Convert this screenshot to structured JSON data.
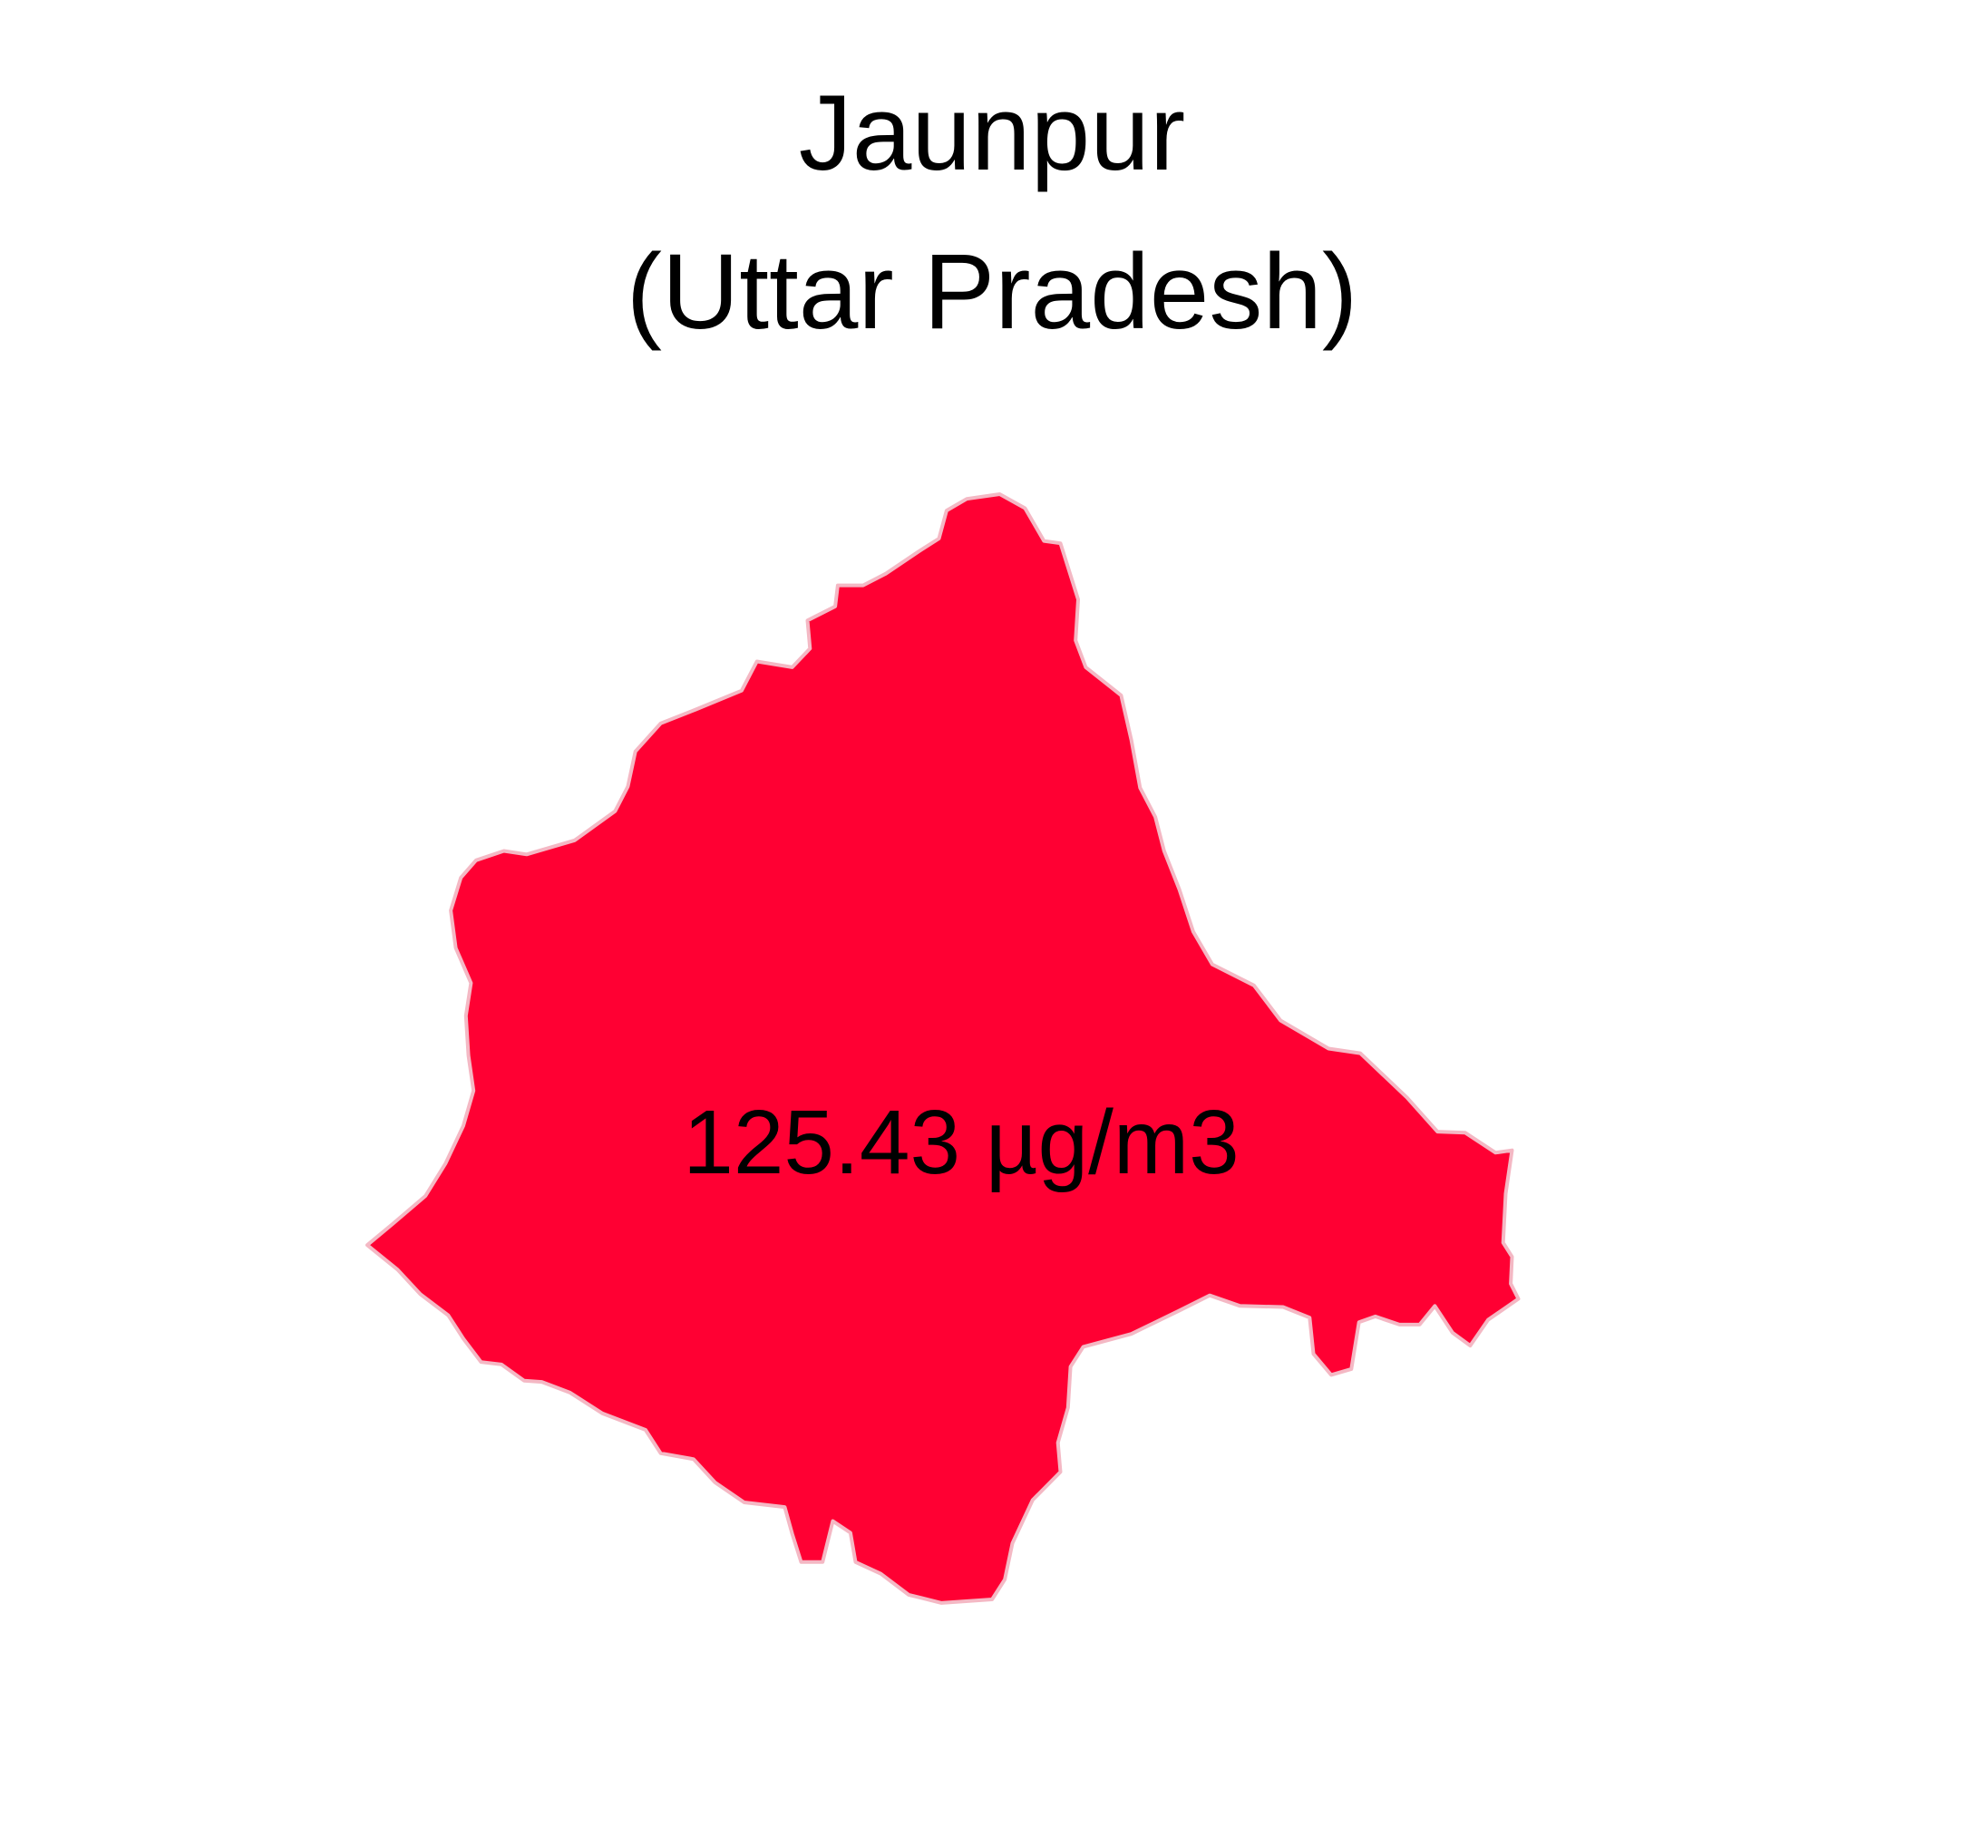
{
  "title": {
    "line1": "Jaunpur",
    "line2": "(Uttar Pradesh)"
  },
  "map": {
    "region_name": "Jaunpur",
    "value_label": "125.43 µg/m3",
    "fill_color": "#FF0033",
    "border_color": "#F4B8C4"
  }
}
